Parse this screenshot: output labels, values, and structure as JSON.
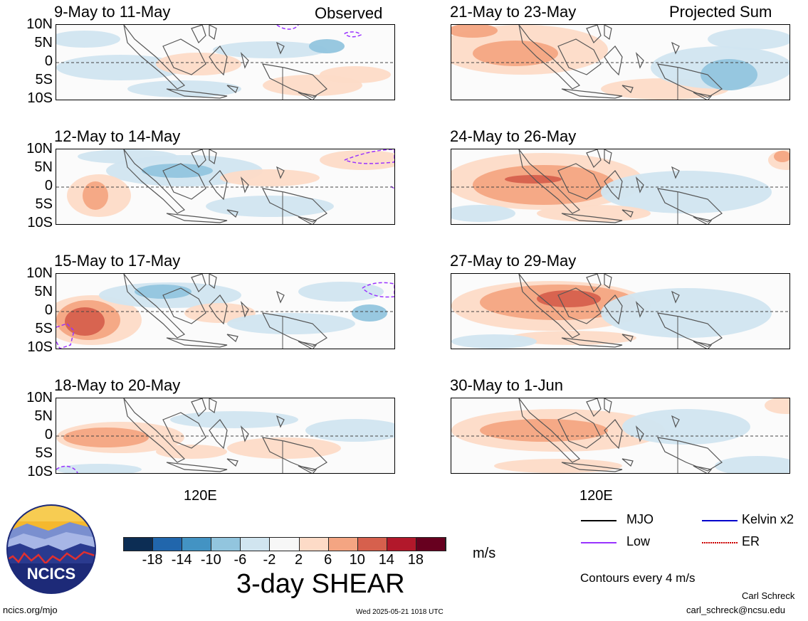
{
  "headers": {
    "left_tag": "Observed",
    "right_tag": "Projected Sum"
  },
  "chart_data": {
    "type": "heatmap",
    "panels": [
      {
        "id": "p1",
        "title": "9-May to 11-May",
        "column": "left",
        "row": 0
      },
      {
        "id": "p2",
        "title": "12-May to 14-May",
        "column": "left",
        "row": 1
      },
      {
        "id": "p3",
        "title": "15-May to 17-May",
        "column": "left",
        "row": 2
      },
      {
        "id": "p4",
        "title": "18-May to 20-May",
        "column": "left",
        "row": 3
      },
      {
        "id": "p5",
        "title": "21-May to 23-May",
        "column": "right",
        "row": 0
      },
      {
        "id": "p6",
        "title": "24-May to 26-May",
        "column": "right",
        "row": 1
      },
      {
        "id": "p7",
        "title": "27-May to 29-May",
        "column": "right",
        "row": 2
      },
      {
        "id": "p8",
        "title": "30-May to 1-Jun",
        "column": "right",
        "row": 3
      }
    ],
    "y_ticks": [
      "10N",
      "5N",
      "0",
      "5S",
      "10S"
    ],
    "x_tick": "120E",
    "colorbar": {
      "colors": [
        "#0c2d54",
        "#2166ac",
        "#4393c3",
        "#92c5de",
        "#d1e5f0",
        "#f7f7f7",
        "#fddbc7",
        "#f4a582",
        "#d6604d",
        "#b2182b",
        "#67001f"
      ],
      "ticks": [
        "-18",
        "-14",
        "-10",
        "-6",
        "-2",
        "2",
        "6",
        "10",
        "14",
        "18"
      ],
      "units": "m/s"
    },
    "title": "3-day SHEAR"
  },
  "legend": {
    "items": [
      {
        "label": "MJO",
        "color": "#000000"
      },
      {
        "label": "Kelvin x2",
        "color": "#0000cc"
      },
      {
        "label": "Low",
        "color": "#9933ff"
      },
      {
        "label": "ER",
        "color": "#cc0000"
      }
    ],
    "contour_note": "Contours every 4 m/s"
  },
  "footer": {
    "logo_text": "NCICS",
    "site": "ncics.org/mjo",
    "timestamp": "Wed 2025-05-21 1018 UTC",
    "author": "Carl Schreck",
    "email": "carl_schreck@ncsu.edu"
  }
}
